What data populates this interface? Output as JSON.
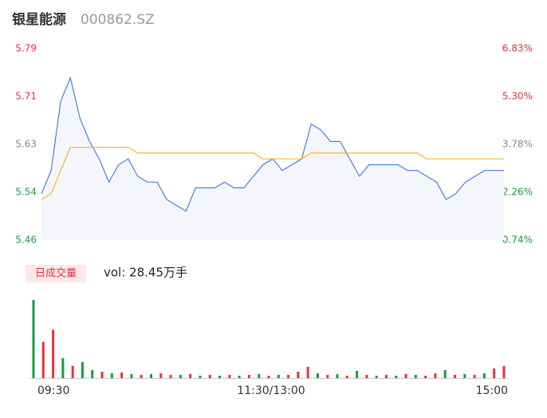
{
  "header": {
    "name": "银星能源",
    "code": "000862.SZ"
  },
  "chart_data": [
    {
      "type": "line",
      "ylim": [
        5.46,
        5.79
      ],
      "yticks": [
        {
          "value": 5.46,
          "label": "5.46"
        },
        {
          "value": 5.5425,
          "label": "5.54"
        },
        {
          "value": 5.625,
          "label": "5.63"
        },
        {
          "value": 5.7075,
          "label": "5.71"
        },
        {
          "value": 5.79,
          "label": "5.79"
        }
      ],
      "ytick_colors": [
        "#1a9c3f",
        "#1a9c3f",
        "#888888",
        "#e8323c",
        "#e8323c"
      ],
      "y2lim": [
        0.74,
        6.83
      ],
      "y2ticks": [
        {
          "value": 0.74,
          "label": "0.74%"
        },
        {
          "value": 2.2625,
          "label": "2.26%"
        },
        {
          "value": 3.785,
          "label": "3.78%"
        },
        {
          "value": 5.3075,
          "label": "5.30%"
        },
        {
          "value": 6.83,
          "label": "6.83%"
        }
      ],
      "series": [
        {
          "color": "#4a7fe0",
          "values": [
            5.54,
            5.58,
            5.7,
            5.74,
            5.67,
            5.63,
            5.6,
            5.56,
            5.59,
            5.6,
            5.57,
            5.56,
            5.56,
            5.53,
            5.52,
            5.51,
            5.55,
            5.55,
            5.55,
            5.56,
            5.55,
            5.55,
            5.57,
            5.59,
            5.6,
            5.58,
            5.59,
            5.6,
            5.66,
            5.65,
            5.63,
            5.63,
            5.6,
            5.57,
            5.59,
            5.59,
            5.59,
            5.59,
            5.58,
            5.58,
            5.57,
            5.56,
            5.53,
            5.54,
            5.56,
            5.57,
            5.58,
            5.58,
            5.58
          ]
        },
        {
          "color": "#f5b631",
          "values": [
            5.53,
            5.54,
            5.58,
            5.62,
            5.62,
            5.62,
            5.62,
            5.62,
            5.62,
            5.62,
            5.61,
            5.61,
            5.61,
            5.61,
            5.61,
            5.61,
            5.61,
            5.61,
            5.61,
            5.61,
            5.61,
            5.61,
            5.61,
            5.6,
            5.6,
            5.6,
            5.6,
            5.6,
            5.61,
            5.61,
            5.61,
            5.61,
            5.61,
            5.61,
            5.61,
            5.61,
            5.61,
            5.61,
            5.61,
            5.61,
            5.6,
            5.6,
            5.6,
            5.6,
            5.6,
            5.6,
            5.6,
            5.6,
            5.6
          ]
        }
      ]
    },
    {
      "type": "bar",
      "legend": "日成交量",
      "annotation": "vol: 28.45万手",
      "x_labels": [
        "09:30",
        "11:30/13:00",
        "15:00"
      ],
      "values": [
        97,
        45,
        60,
        25,
        15,
        20,
        10,
        8,
        6,
        7,
        5,
        4,
        5,
        6,
        4,
        4,
        5,
        3,
        4,
        3,
        4,
        3,
        4,
        5,
        3,
        4,
        4,
        8,
        14,
        6,
        4,
        5,
        3,
        9,
        4,
        3,
        4,
        3,
        5,
        4,
        3,
        6,
        10,
        4,
        5,
        4,
        6,
        12,
        15
      ],
      "colors": [
        "#1a9c3f",
        "#e8323c",
        "#e8323c",
        "#1a9c3f",
        "#e8323c",
        "#1a9c3f",
        "#1a9c3f",
        "#e8323c",
        "#1a9c3f",
        "#e8323c",
        "#1a9c3f",
        "#e8323c",
        "#1a9c3f",
        "#e8323c",
        "#e8323c",
        "#1a9c3f",
        "#e8323c",
        "#1a9c3f",
        "#e8323c",
        "#1a9c3f",
        "#e8323c",
        "#1a9c3f",
        "#e8323c",
        "#1a9c3f",
        "#e8323c",
        "#1a9c3f",
        "#e8323c",
        "#e8323c",
        "#e8323c",
        "#1a9c3f",
        "#e8323c",
        "#1a9c3f",
        "#e8323c",
        "#1a9c3f",
        "#e8323c",
        "#1a9c3f",
        "#e8323c",
        "#1a9c3f",
        "#e8323c",
        "#1a9c3f",
        "#e8323c",
        "#e8323c",
        "#1a9c3f",
        "#e8323c",
        "#1a9c3f",
        "#e8323c",
        "#1a9c3f",
        "#e8323c",
        "#e8323c"
      ]
    }
  ]
}
